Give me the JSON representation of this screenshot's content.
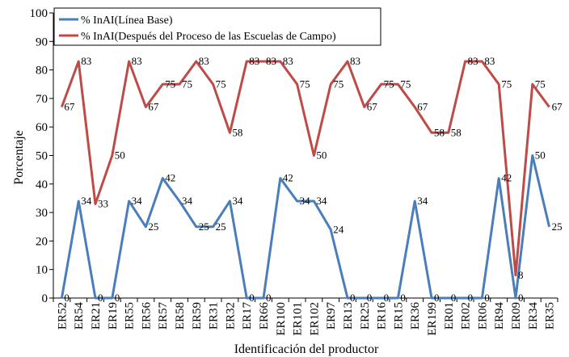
{
  "chart_data": {
    "type": "line",
    "xlabel": "Identificación del productor",
    "ylabel": "Porcentaje",
    "ylim": [
      0,
      100
    ],
    "yticks": [
      0,
      10,
      20,
      30,
      40,
      50,
      60,
      70,
      80,
      90,
      100
    ],
    "grid": false,
    "legend_position": "top-left",
    "categories": [
      "ER52",
      "ER54",
      "ER21",
      "ER19",
      "ER55",
      "ER56",
      "ER57",
      "ER58",
      "ER59",
      "ER31",
      "ER32",
      "ER17",
      "ER66",
      "ER100",
      "ER101",
      "ER102",
      "ER97",
      "ER13",
      "ER25",
      "ER16",
      "ER15",
      "ER36",
      "ER199",
      "ER01",
      "ER02",
      "ER06",
      "ER94",
      "ER09",
      "ER34",
      "ER35"
    ],
    "series": [
      {
        "name": "% InAI(Línea Base)",
        "color": "#4a7ebb",
        "values": [
          0,
          34,
          0,
          0,
          34,
          25,
          42,
          34,
          25,
          25,
          34,
          0,
          0,
          42,
          34,
          34,
          24,
          0,
          0,
          0,
          0,
          34,
          0,
          0,
          0,
          0,
          42,
          0,
          50,
          25
        ],
        "labels": [
          "0",
          "34",
          "0",
          "0",
          "34",
          "25",
          "42",
          "34",
          "25",
          "25",
          "34",
          "0",
          "0",
          "42",
          "34",
          "34",
          "24",
          "0",
          "0",
          "0",
          "0",
          "34",
          "0",
          "0",
          "0",
          "0",
          "42",
          "0",
          "50",
          "25"
        ]
      },
      {
        "name": "% InAI(Después del Proceso de las Escuelas de Campo)",
        "color": "#be4b48",
        "values": [
          67,
          83,
          33,
          50,
          83,
          67,
          75,
          75,
          83,
          75,
          58,
          83,
          83,
          83,
          75,
          50,
          75,
          83,
          67,
          75,
          75,
          67,
          58,
          58,
          83,
          83,
          75,
          8,
          75,
          67
        ],
        "labels": [
          "67",
          "83",
          "33",
          "50",
          "83",
          "67",
          "75",
          "75",
          "83",
          "75",
          "58",
          "83",
          "83",
          "83",
          "75",
          "50",
          "75",
          "83",
          "67",
          "75",
          "75",
          "67",
          "58",
          "58",
          "83",
          "83",
          "75",
          "8",
          "75",
          "67"
        ]
      }
    ]
  }
}
